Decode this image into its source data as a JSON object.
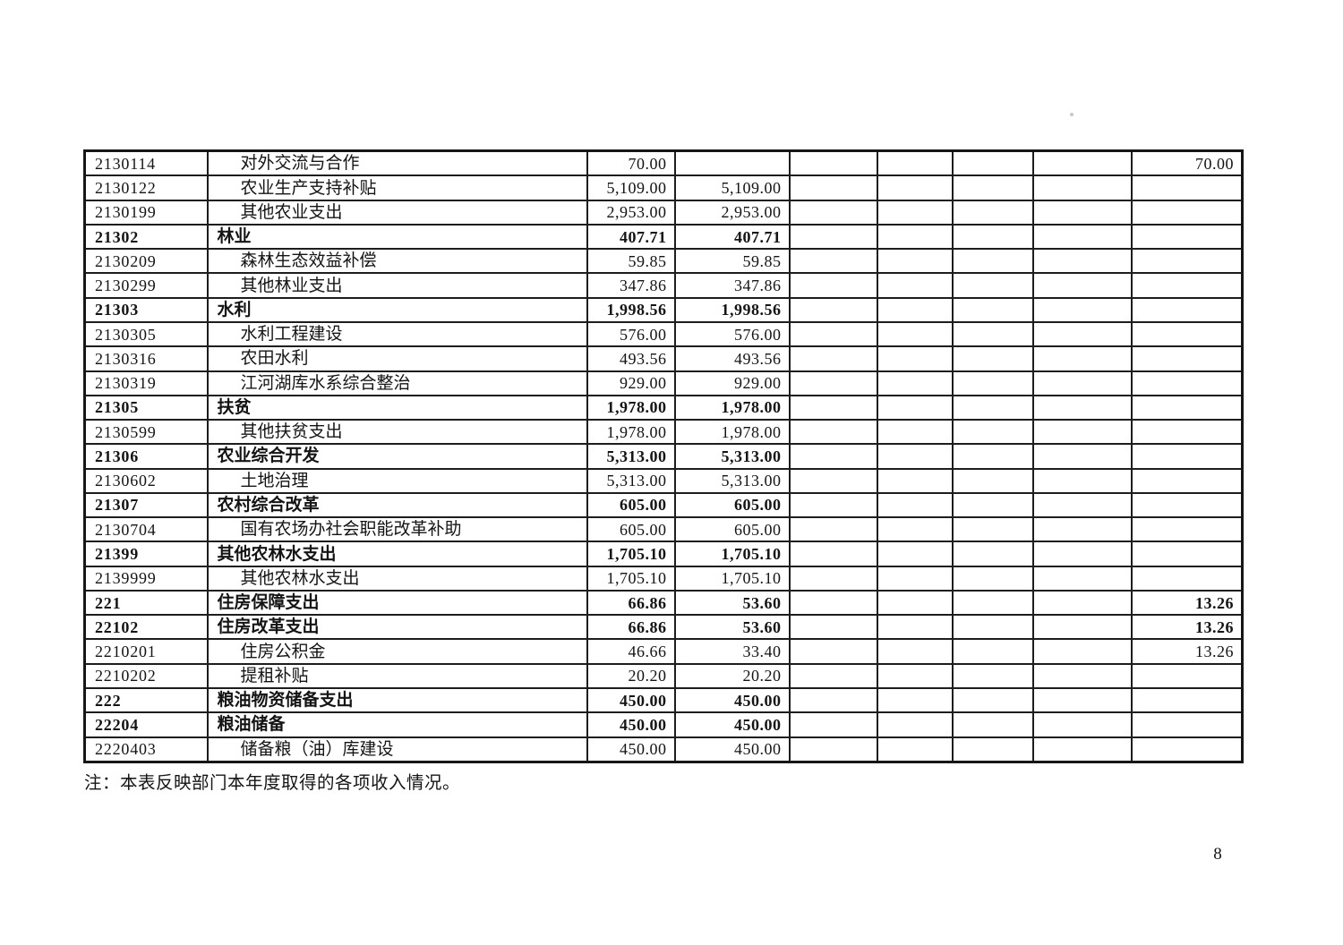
{
  "document": {
    "note": "注：本表反映部门本年度取得的各项收入情况。",
    "page_number": "8"
  },
  "table": {
    "rows": [
      {
        "code": "2130114",
        "name": "对外交流与合作",
        "sub": true,
        "bold": false,
        "a1": "70.00",
        "a2": "",
        "last": "70.00"
      },
      {
        "code": "2130122",
        "name": "农业生产支持补贴",
        "sub": true,
        "bold": false,
        "a1": "5,109.00",
        "a2": "5,109.00",
        "last": ""
      },
      {
        "code": "2130199",
        "name": "其他农业支出",
        "sub": true,
        "bold": false,
        "a1": "2,953.00",
        "a2": "2,953.00",
        "last": ""
      },
      {
        "code": "21302",
        "name": "林业",
        "sub": false,
        "bold": true,
        "a1": "407.71",
        "a2": "407.71",
        "last": ""
      },
      {
        "code": "2130209",
        "name": "森林生态效益补偿",
        "sub": true,
        "bold": false,
        "a1": "59.85",
        "a2": "59.85",
        "last": ""
      },
      {
        "code": "2130299",
        "name": "其他林业支出",
        "sub": true,
        "bold": false,
        "a1": "347.86",
        "a2": "347.86",
        "last": ""
      },
      {
        "code": "21303",
        "name": "水利",
        "sub": false,
        "bold": true,
        "a1": "1,998.56",
        "a2": "1,998.56",
        "last": ""
      },
      {
        "code": "2130305",
        "name": "水利工程建设",
        "sub": true,
        "bold": false,
        "a1": "576.00",
        "a2": "576.00",
        "last": ""
      },
      {
        "code": "2130316",
        "name": "农田水利",
        "sub": true,
        "bold": false,
        "a1": "493.56",
        "a2": "493.56",
        "last": ""
      },
      {
        "code": "2130319",
        "name": "江河湖库水系综合整治",
        "sub": true,
        "bold": false,
        "a1": "929.00",
        "a2": "929.00",
        "last": ""
      },
      {
        "code": "21305",
        "name": "扶贫",
        "sub": false,
        "bold": true,
        "a1": "1,978.00",
        "a2": "1,978.00",
        "last": ""
      },
      {
        "code": "2130599",
        "name": "其他扶贫支出",
        "sub": true,
        "bold": false,
        "a1": "1,978.00",
        "a2": "1,978.00",
        "last": ""
      },
      {
        "code": "21306",
        "name": "农业综合开发",
        "sub": false,
        "bold": true,
        "a1": "5,313.00",
        "a2": "5,313.00",
        "last": ""
      },
      {
        "code": "2130602",
        "name": "土地治理",
        "sub": true,
        "bold": false,
        "a1": "5,313.00",
        "a2": "5,313.00",
        "last": ""
      },
      {
        "code": "21307",
        "name": "农村综合改革",
        "sub": false,
        "bold": true,
        "a1": "605.00",
        "a2": "605.00",
        "last": ""
      },
      {
        "code": "2130704",
        "name": "国有农场办社会职能改革补助",
        "sub": true,
        "bold": false,
        "a1": "605.00",
        "a2": "605.00",
        "last": ""
      },
      {
        "code": "21399",
        "name": "其他农林水支出",
        "sub": false,
        "bold": true,
        "a1": "1,705.10",
        "a2": "1,705.10",
        "last": ""
      },
      {
        "code": "2139999",
        "name": "其他农林水支出",
        "sub": true,
        "bold": false,
        "a1": "1,705.10",
        "a2": "1,705.10",
        "last": ""
      },
      {
        "code": "221",
        "name": "住房保障支出",
        "sub": false,
        "bold": true,
        "a1": "66.86",
        "a2": "53.60",
        "last": "13.26"
      },
      {
        "code": "22102",
        "name": "住房改革支出",
        "sub": false,
        "bold": true,
        "a1": "66.86",
        "a2": "53.60",
        "last": "13.26"
      },
      {
        "code": "2210201",
        "name": "住房公积金",
        "sub": true,
        "bold": false,
        "a1": "46.66",
        "a2": "33.40",
        "last": "13.26"
      },
      {
        "code": "2210202",
        "name": "提租补贴",
        "sub": true,
        "bold": false,
        "a1": "20.20",
        "a2": "20.20",
        "last": ""
      },
      {
        "code": "222",
        "name": "粮油物资储备支出",
        "sub": false,
        "bold": true,
        "a1": "450.00",
        "a2": "450.00",
        "last": ""
      },
      {
        "code": "22204",
        "name": "粮油储备",
        "sub": false,
        "bold": true,
        "a1": "450.00",
        "a2": "450.00",
        "last": ""
      },
      {
        "code": "2220403",
        "name": "储备粮（油）库建设",
        "sub": true,
        "bold": false,
        "a1": "450.00",
        "a2": "450.00",
        "last": ""
      }
    ]
  }
}
